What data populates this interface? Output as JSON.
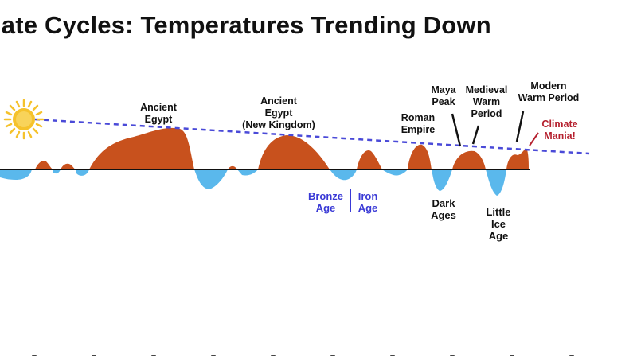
{
  "title": "mate Cycles: Temperatures Trending Down",
  "labels": {
    "ancient_egypt": "Ancient\nEgypt",
    "ancient_egypt_nk": "Ancient\nEgypt\n(New Kingdom)",
    "roman_empire": "Roman\nEmpire",
    "maya_peak": "Maya\nPeak",
    "medieval_warm": "Medieval\nWarm\nPeriod",
    "modern_warm": "Modern\nWarm Period",
    "climate_mania": "Climate\nMania!",
    "bronze_age": "Bronze\nAge",
    "iron_age": "Iron\nAge",
    "dark_ages": "Dark\nAges",
    "little_ice_age": "Little\nIce\nAge"
  },
  "colors": {
    "warm": "#c8511d",
    "cool": "#5ab8ec",
    "trend": "#4a4ad8",
    "sun": "#f5c22c",
    "accent_red": "#b5202e",
    "label_blue": "#3a3ad6"
  },
  "icons": {
    "sun": "sun-icon"
  }
}
